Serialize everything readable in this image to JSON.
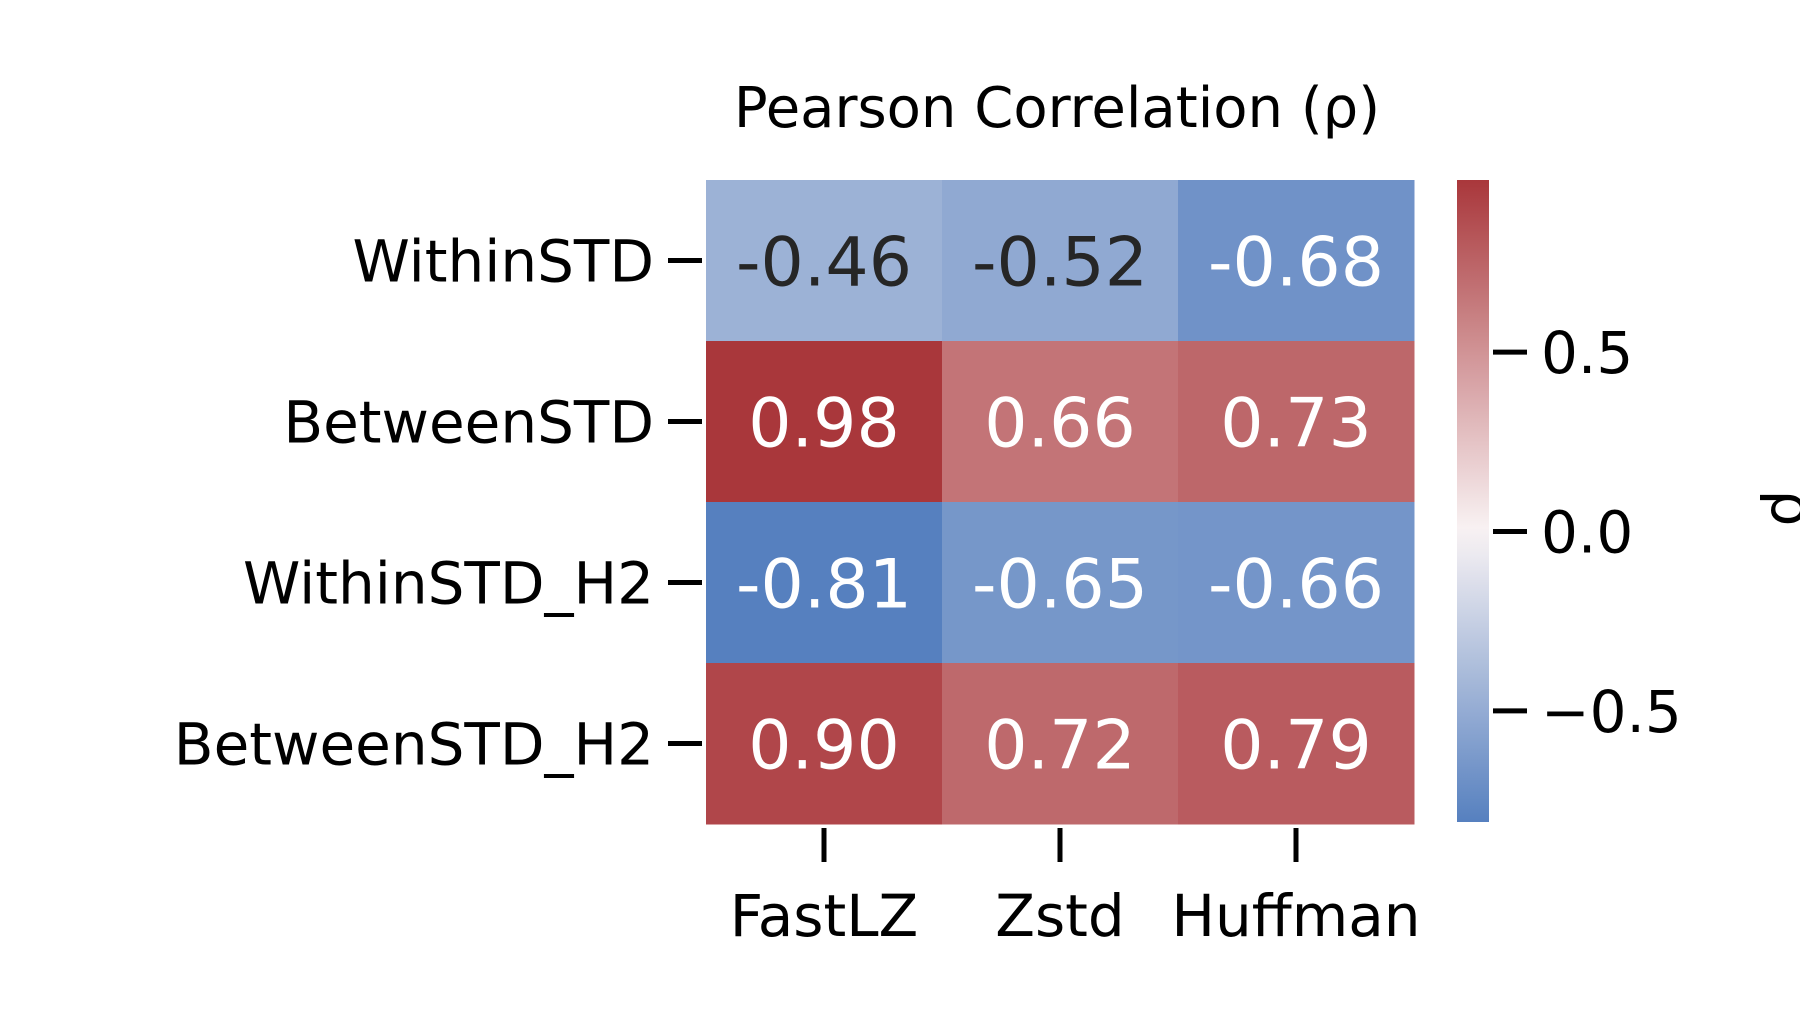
{
  "chart_data": {
    "type": "heatmap",
    "title": "Pearson Correlation (ρ)",
    "rows": [
      "WithinSTD",
      "BetweenSTD",
      "WithinSTD_H2",
      "BetweenSTD_H2"
    ],
    "columns": [
      "FastLZ",
      "Zstd",
      "Huffman"
    ],
    "values": [
      [
        -0.46,
        -0.52,
        -0.68
      ],
      [
        0.98,
        0.66,
        0.73
      ],
      [
        -0.81,
        -0.65,
        -0.66
      ],
      [
        0.9,
        0.72,
        0.79
      ]
    ],
    "value_labels": [
      [
        "-0.46",
        "-0.52",
        "-0.68"
      ],
      [
        "0.98",
        "0.66",
        "0.73"
      ],
      [
        "-0.81",
        "-0.65",
        "-0.66"
      ],
      [
        "0.90",
        "0.72",
        "0.79"
      ]
    ],
    "colormap": "vlag",
    "colors": {
      "low": "#5680bf",
      "mid": "#f9f3f4",
      "high": "#a9373b",
      "dark_text": "#262626",
      "light_text": "#ffffff"
    },
    "colorbar": {
      "label": "ρ",
      "range": [
        -0.81,
        0.98
      ],
      "ticks": [
        0.5,
        0.0,
        -0.5
      ],
      "tick_labels": [
        "0.5",
        "0.0",
        "−0.5"
      ]
    }
  }
}
